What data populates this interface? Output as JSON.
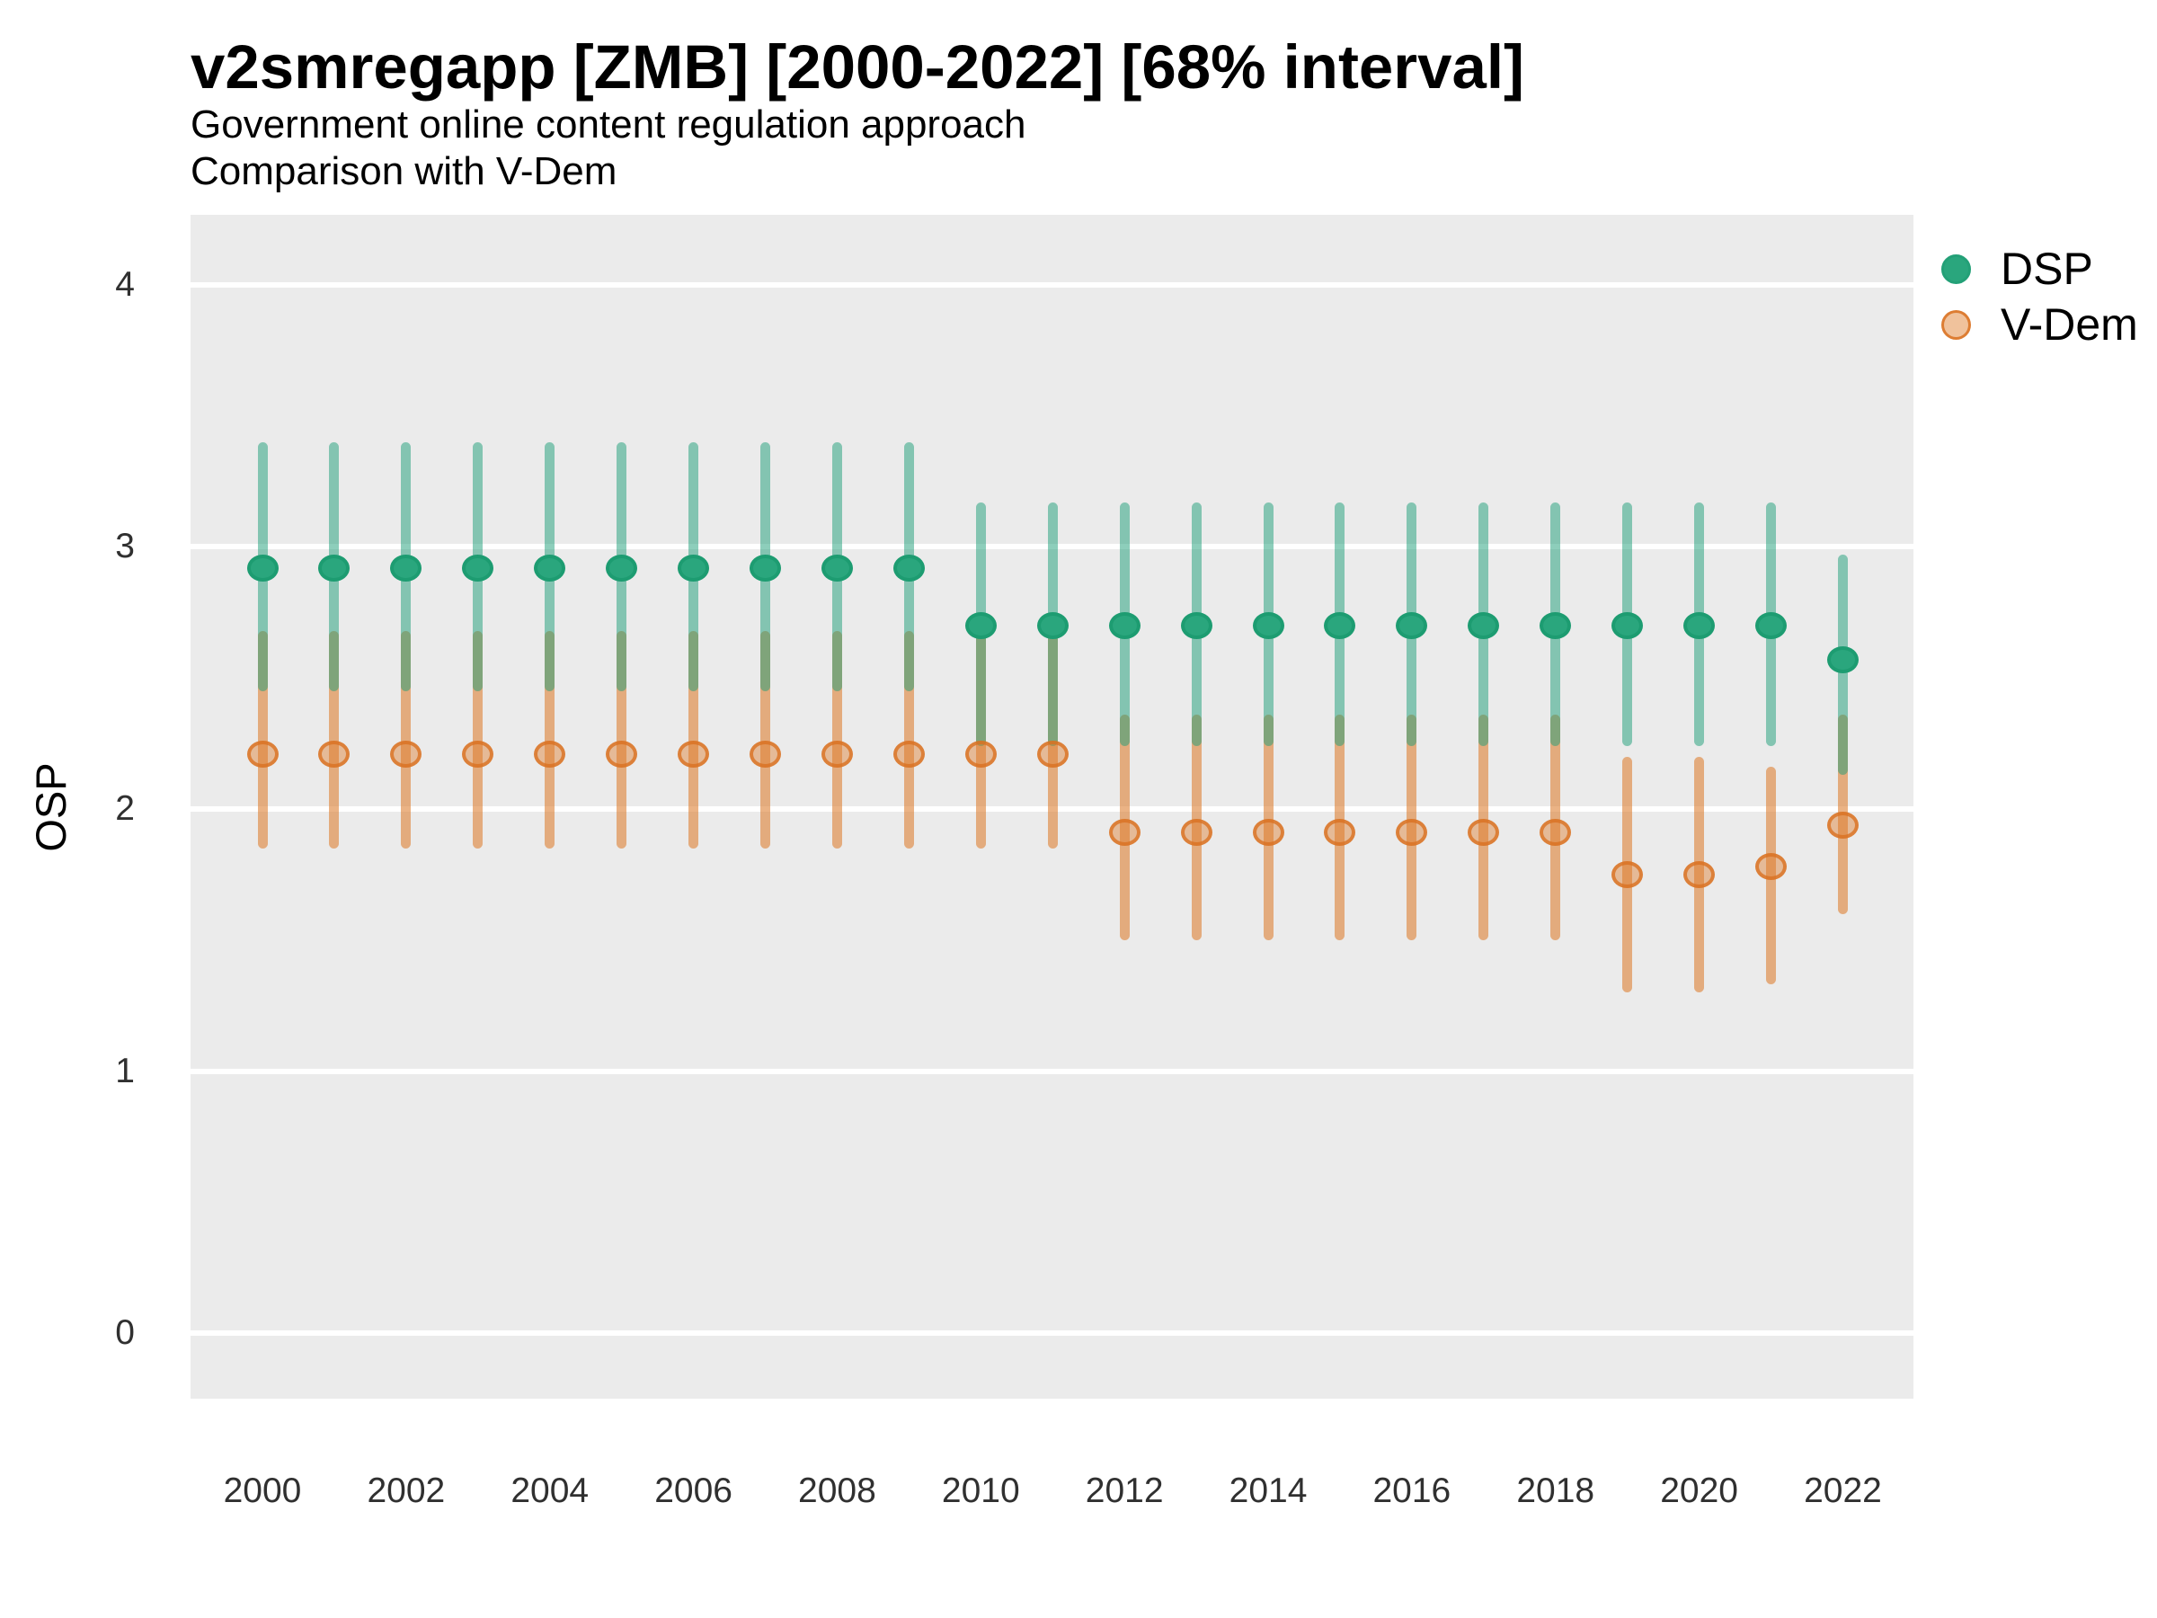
{
  "title": "v2smregapp [ZMB] [2000-2022] [68% interval]",
  "subtitle_line1": "Government online content regulation approach",
  "subtitle_line2": "Comparison with V-Dem",
  "y_axis_title": "OSP",
  "legend": {
    "items": [
      {
        "label": "DSP",
        "key": "dsp"
      },
      {
        "label": "V-Dem",
        "key": "vdem"
      }
    ],
    "position": "right-top"
  },
  "colors": {
    "dsp": "#1b9e77",
    "vdem": "#dd7c2c",
    "panel_background": "#ebebeb",
    "gridline": "#ffffff",
    "tick_text": "#303030"
  },
  "chart_data": {
    "type": "scatter",
    "subtype": "pointrange-interval",
    "interval": "68%",
    "title": "v2smregapp [ZMB] [2000-2022] [68% interval]",
    "subtitle": [
      "Government online content regulation approach",
      "Comparison with V-Dem"
    ],
    "xlabel": "",
    "ylabel": "OSP",
    "ylim": [
      -0.25,
      4.27
    ],
    "y_ticks": [
      0,
      1,
      2,
      3,
      4
    ],
    "x_ticks": [
      2000,
      2002,
      2004,
      2006,
      2008,
      2010,
      2012,
      2014,
      2016,
      2018,
      2020,
      2022
    ],
    "grid": "horizontal-major-only",
    "legend_position": "right-top",
    "x": [
      2000,
      2001,
      2002,
      2003,
      2004,
      2005,
      2006,
      2007,
      2008,
      2009,
      2010,
      2011,
      2012,
      2013,
      2014,
      2015,
      2016,
      2017,
      2018,
      2019,
      2020,
      2021,
      2022
    ],
    "series": [
      {
        "name": "DSP",
        "key": "dsp",
        "est": [
          2.92,
          2.92,
          2.92,
          2.92,
          2.92,
          2.92,
          2.92,
          2.92,
          2.92,
          2.92,
          2.7,
          2.7,
          2.7,
          2.7,
          2.7,
          2.7,
          2.7,
          2.7,
          2.7,
          2.7,
          2.7,
          2.7,
          2.57
        ],
        "lo": [
          2.45,
          2.45,
          2.45,
          2.45,
          2.45,
          2.45,
          2.45,
          2.45,
          2.45,
          2.45,
          2.24,
          2.24,
          2.24,
          2.24,
          2.24,
          2.24,
          2.24,
          2.24,
          2.24,
          2.24,
          2.24,
          2.24,
          2.13
        ],
        "hi": [
          3.4,
          3.4,
          3.4,
          3.4,
          3.4,
          3.4,
          3.4,
          3.4,
          3.4,
          3.4,
          3.17,
          3.17,
          3.17,
          3.17,
          3.17,
          3.17,
          3.17,
          3.17,
          3.17,
          3.17,
          3.17,
          3.17,
          2.97
        ]
      },
      {
        "name": "V-Dem",
        "key": "vdem",
        "est": [
          2.21,
          2.21,
          2.21,
          2.21,
          2.21,
          2.21,
          2.21,
          2.21,
          2.21,
          2.21,
          2.21,
          2.21,
          1.91,
          1.91,
          1.91,
          1.91,
          1.91,
          1.91,
          1.91,
          1.75,
          1.75,
          1.78,
          1.94
        ],
        "lo": [
          1.85,
          1.85,
          1.85,
          1.85,
          1.85,
          1.85,
          1.85,
          1.85,
          1.85,
          1.85,
          1.85,
          1.85,
          1.5,
          1.5,
          1.5,
          1.5,
          1.5,
          1.5,
          1.5,
          1.3,
          1.3,
          1.33,
          1.6
        ],
        "hi": [
          2.68,
          2.68,
          2.68,
          2.68,
          2.68,
          2.68,
          2.68,
          2.68,
          2.68,
          2.68,
          2.68,
          2.68,
          2.36,
          2.36,
          2.36,
          2.36,
          2.36,
          2.36,
          2.36,
          2.2,
          2.2,
          2.16,
          2.36
        ]
      }
    ]
  }
}
